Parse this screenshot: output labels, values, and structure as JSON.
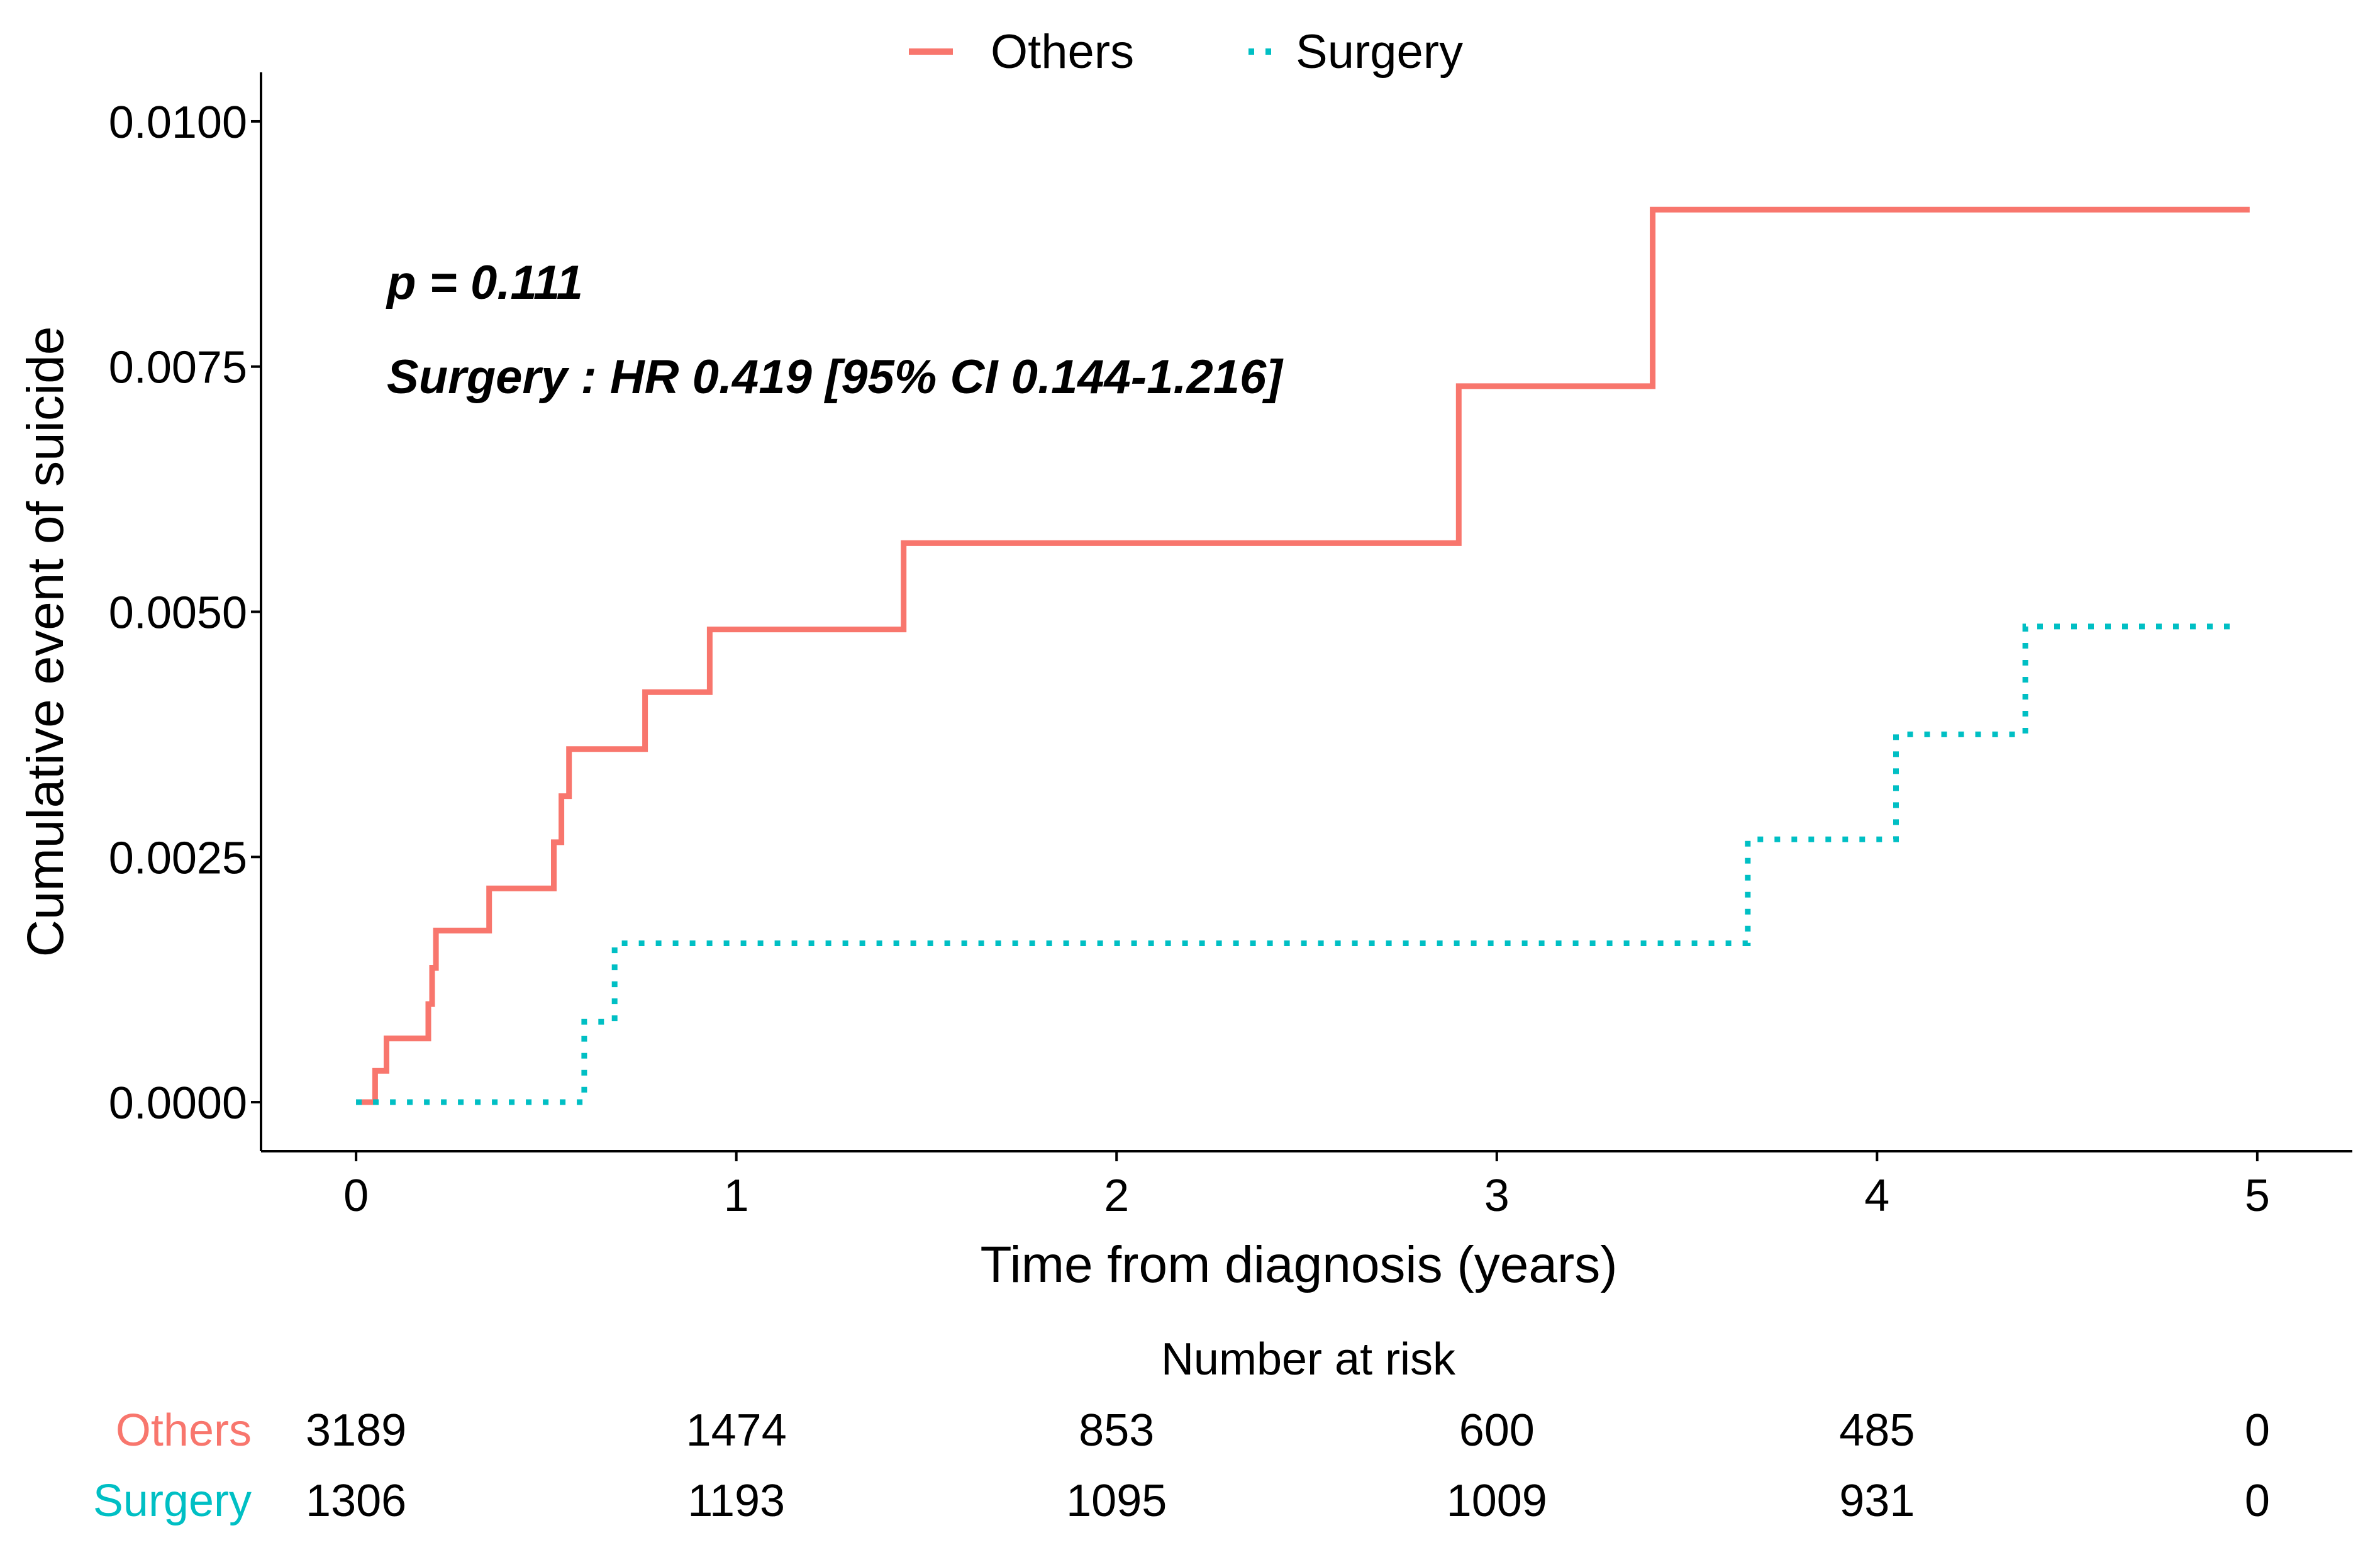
{
  "chart_data": {
    "type": "line",
    "subtype": "step",
    "ylabel": "Cumulative event of suicide",
    "xlabel": "Time from diagnosis (years)",
    "xlim": [
      -0.25,
      5.25
    ],
    "ylim": [
      -0.0005,
      0.0105
    ],
    "xticks": [
      0,
      1,
      2,
      3,
      4,
      5
    ],
    "xtick_labels": [
      "0",
      "1",
      "2",
      "3",
      "4",
      "5"
    ],
    "yticks": [
      0,
      0.0025,
      0.005,
      0.0075,
      0.01
    ],
    "ytick_labels": [
      "0.0000",
      "0.0025",
      "0.0050",
      "0.0075",
      "0.0100"
    ],
    "grid": false,
    "legend_position": "top",
    "annotations": {
      "p_value": "p = 0.111",
      "hr": "Surgery : HR 0.419 [95% CI 0.144-1.216]"
    },
    "series": [
      {
        "name": "Others",
        "color": "#F8766D",
        "linestyle": "solid",
        "x": [
          0.0,
          0.05,
          0.05,
          0.08,
          0.08,
          0.19,
          0.19,
          0.2,
          0.2,
          0.21,
          0.21,
          0.35,
          0.35,
          0.52,
          0.52,
          0.54,
          0.54,
          0.56,
          0.56,
          0.76,
          0.76,
          0.93,
          0.93,
          1.44,
          1.44,
          2.9,
          2.9,
          3.41,
          3.41,
          4.98
        ],
        "y": [
          0.0,
          0.0,
          0.00032,
          0.00032,
          0.00065,
          0.00065,
          0.001,
          0.001,
          0.00137,
          0.00137,
          0.00175,
          0.00175,
          0.00218,
          0.00218,
          0.00265,
          0.00265,
          0.00312,
          0.00312,
          0.0036,
          0.0036,
          0.00418,
          0.00418,
          0.00482,
          0.00482,
          0.0057,
          0.0057,
          0.0073,
          0.0073,
          0.0091,
          0.0091
        ]
      },
      {
        "name": "Surgery",
        "color": "#00BFC4",
        "linestyle": "dotted",
        "x": [
          0.0,
          0.6,
          0.6,
          0.68,
          0.68,
          3.66,
          3.66,
          4.05,
          4.05,
          4.39,
          4.39,
          4.95
        ],
        "y": [
          0.0,
          0.0,
          0.00082,
          0.00082,
          0.00162,
          0.00162,
          0.00268,
          0.00268,
          0.00375,
          0.00375,
          0.00485,
          0.00485
        ]
      }
    ],
    "risk_table": {
      "title": "Number at risk",
      "times": [
        0,
        1,
        2,
        3,
        4,
        5
      ],
      "rows": [
        {
          "name": "Others",
          "color": "#F8766D",
          "values": [
            "3189",
            "1474",
            "853",
            "600",
            "485",
            "0"
          ]
        },
        {
          "name": "Surgery",
          "color": "#00BFC4",
          "values": [
            "1306",
            "1193",
            "1095",
            "1009",
            "931",
            "0"
          ]
        }
      ]
    }
  }
}
